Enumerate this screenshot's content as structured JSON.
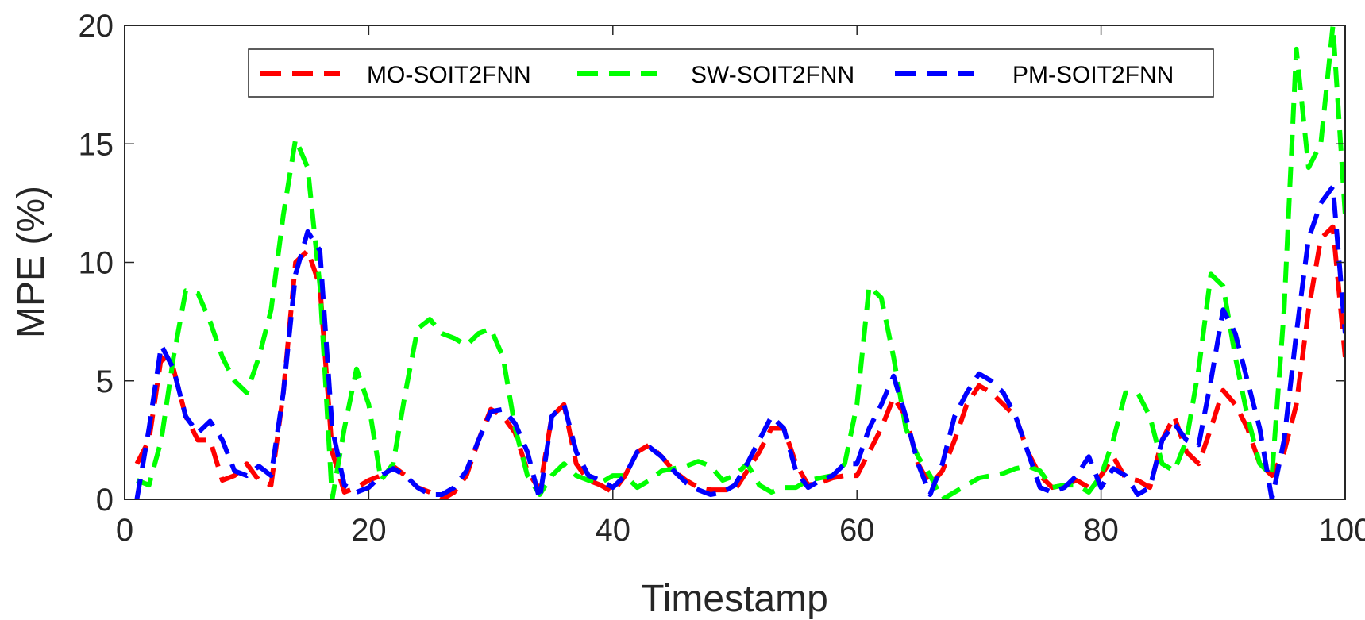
{
  "chart_data": {
    "type": "line",
    "title": "",
    "xlabel": "Timestamp",
    "ylabel": "MPE (%)",
    "xlim": [
      0,
      100
    ],
    "ylim": [
      0,
      20
    ],
    "xticks": [
      0,
      20,
      40,
      60,
      80,
      100
    ],
    "yticks": [
      0,
      5,
      10,
      15,
      20
    ],
    "grid": false,
    "legend_position": "top-center",
    "series": [
      {
        "name": "MO-SOIT2FNN",
        "color": "#ff0000",
        "dash": "dashed",
        "x": [
          1,
          2,
          3,
          4,
          5,
          6,
          7,
          8,
          9,
          10,
          11,
          12,
          13,
          14,
          15,
          16,
          17,
          18,
          19,
          20,
          21,
          22,
          23,
          24,
          25,
          26,
          27,
          28,
          29,
          30,
          31,
          32,
          33,
          34,
          35,
          36,
          37,
          38,
          39,
          40,
          41,
          42,
          43,
          44,
          45,
          46,
          47,
          48,
          49,
          50,
          51,
          52,
          53,
          54,
          55,
          56,
          57,
          58,
          59,
          60,
          61,
          62,
          63,
          64,
          65,
          66,
          67,
          68,
          69,
          70,
          71,
          72,
          73,
          74,
          75,
          76,
          77,
          78,
          79,
          80,
          81,
          82,
          83,
          84,
          85,
          86,
          87,
          88,
          89,
          90,
          91,
          92,
          93,
          94,
          95,
          96,
          97,
          98,
          99,
          100
        ],
        "y": [
          1.5,
          2.5,
          6.0,
          5.5,
          3.5,
          2.5,
          2.5,
          0.8,
          1.0,
          1.5,
          0.8,
          0.6,
          4.5,
          10.0,
          10.5,
          9.0,
          2.0,
          0.3,
          0.5,
          0.8,
          1.0,
          1.4,
          1.0,
          0.5,
          0.3,
          0.0,
          0.3,
          1.0,
          2.5,
          3.8,
          3.5,
          2.8,
          1.2,
          0.4,
          3.5,
          4.0,
          1.5,
          0.8,
          0.6,
          0.3,
          1.0,
          2.0,
          2.3,
          1.8,
          1.2,
          0.8,
          0.5,
          0.4,
          0.4,
          0.4,
          1.2,
          2.0,
          3.0,
          3.0,
          1.5,
          0.6,
          0.7,
          0.9,
          1.0,
          1.0,
          2.0,
          3.0,
          4.3,
          3.5,
          1.5,
          0.6,
          1.2,
          2.5,
          4.0,
          4.8,
          4.5,
          4.0,
          3.5,
          2.0,
          1.0,
          0.5,
          0.6,
          0.8,
          0.5,
          1.0,
          1.8,
          0.9,
          0.8,
          0.5,
          2.5,
          3.5,
          2.0,
          1.5,
          3.0,
          4.6,
          4.0,
          3.0,
          1.5,
          1.0,
          2.0,
          4.0,
          8.0,
          11.0,
          11.5,
          6.0
        ]
      },
      {
        "name": "SW-SOIT2FNN",
        "color": "#00ff00",
        "dash": "dashed",
        "x": [
          1,
          2,
          3,
          4,
          5,
          6,
          7,
          8,
          9,
          10,
          11,
          12,
          13,
          14,
          15,
          16,
          17,
          18,
          19,
          20,
          21,
          22,
          23,
          24,
          25,
          26,
          27,
          28,
          29,
          30,
          31,
          32,
          33,
          34,
          35,
          36,
          37,
          38,
          39,
          40,
          41,
          42,
          43,
          44,
          45,
          46,
          47,
          48,
          49,
          50,
          51,
          52,
          53,
          54,
          55,
          56,
          57,
          58,
          59,
          60,
          61,
          62,
          63,
          64,
          65,
          66,
          67,
          68,
          69,
          70,
          71,
          72,
          73,
          74,
          75,
          76,
          77,
          78,
          79,
          80,
          81,
          82,
          83,
          84,
          85,
          86,
          87,
          88,
          89,
          90,
          91,
          92,
          93,
          94,
          95,
          96,
          97,
          98,
          99,
          100
        ],
        "y": [
          0.8,
          0.6,
          2.5,
          6.0,
          8.8,
          8.7,
          7.5,
          6.0,
          5.0,
          4.5,
          6.0,
          8.0,
          12.0,
          15.2,
          14.0,
          9.0,
          0.0,
          3.0,
          5.5,
          4.0,
          0.8,
          1.5,
          4.5,
          7.2,
          7.6,
          7.0,
          6.8,
          6.5,
          7.0,
          7.2,
          6.0,
          3.0,
          1.0,
          0.2,
          1.0,
          1.5,
          1.0,
          0.8,
          0.7,
          1.0,
          1.0,
          0.5,
          0.8,
          1.2,
          1.3,
          1.4,
          1.6,
          1.4,
          0.8,
          1.0,
          1.5,
          0.6,
          0.3,
          0.5,
          0.5,
          0.8,
          0.9,
          1.0,
          1.5,
          4.0,
          9.0,
          8.5,
          6.0,
          3.0,
          1.8,
          1.0,
          0.0,
          0.3,
          0.6,
          0.9,
          1.0,
          1.1,
          1.3,
          1.4,
          1.2,
          0.5,
          0.6,
          0.6,
          0.3,
          1.0,
          2.5,
          4.5,
          4.5,
          3.5,
          1.5,
          1.2,
          2.5,
          5.5,
          9.5,
          9.0,
          6.0,
          3.5,
          1.5,
          1.0,
          8.0,
          19.0,
          14.0,
          15.0,
          20.0,
          12.0
        ]
      },
      {
        "name": "PM-SOIT2FNN",
        "color": "#0000ff",
        "dash": "dashed",
        "x": [
          1,
          2,
          3,
          4,
          5,
          6,
          7,
          8,
          9,
          10,
          11,
          12,
          13,
          14,
          15,
          16,
          17,
          18,
          19,
          20,
          21,
          22,
          23,
          24,
          25,
          26,
          27,
          28,
          29,
          30,
          31,
          32,
          33,
          34,
          35,
          36,
          37,
          38,
          39,
          40,
          41,
          42,
          43,
          44,
          45,
          46,
          47,
          48,
          49,
          50,
          51,
          52,
          53,
          54,
          55,
          56,
          57,
          58,
          59,
          60,
          61,
          62,
          63,
          64,
          65,
          66,
          67,
          68,
          69,
          70,
          71,
          72,
          73,
          74,
          75,
          76,
          77,
          78,
          79,
          80,
          81,
          82,
          83,
          84,
          85,
          86,
          87,
          88,
          89,
          90,
          91,
          92,
          93,
          94,
          95,
          96,
          97,
          98,
          99,
          100
        ],
        "y": [
          0.0,
          3.0,
          6.5,
          5.5,
          3.5,
          2.8,
          3.3,
          2.5,
          1.2,
          1.0,
          1.4,
          1.0,
          4.5,
          9.5,
          11.3,
          10.5,
          3.0,
          0.6,
          0.3,
          0.5,
          1.0,
          1.3,
          1.0,
          0.5,
          0.2,
          0.2,
          0.5,
          1.2,
          2.5,
          3.7,
          3.8,
          3.2,
          2.0,
          0.0,
          3.5,
          4.0,
          2.0,
          1.0,
          0.8,
          0.5,
          1.0,
          2.0,
          2.2,
          1.8,
          1.2,
          0.7,
          0.4,
          0.2,
          0.3,
          0.6,
          1.5,
          2.5,
          3.5,
          3.0,
          1.2,
          0.5,
          0.8,
          1.0,
          1.5,
          1.5,
          3.0,
          4.0,
          5.2,
          3.5,
          1.5,
          0.2,
          1.5,
          3.5,
          4.5,
          5.3,
          5.0,
          4.5,
          3.5,
          2.0,
          0.5,
          0.3,
          0.5,
          1.0,
          1.8,
          0.5,
          1.3,
          1.0,
          0.2,
          0.5,
          2.5,
          3.2,
          2.5,
          2.3,
          5.0,
          8.0,
          7.0,
          5.0,
          3.0,
          0.0,
          2.5,
          7.0,
          11.0,
          12.5,
          13.2,
          7.0
        ]
      }
    ]
  }
}
